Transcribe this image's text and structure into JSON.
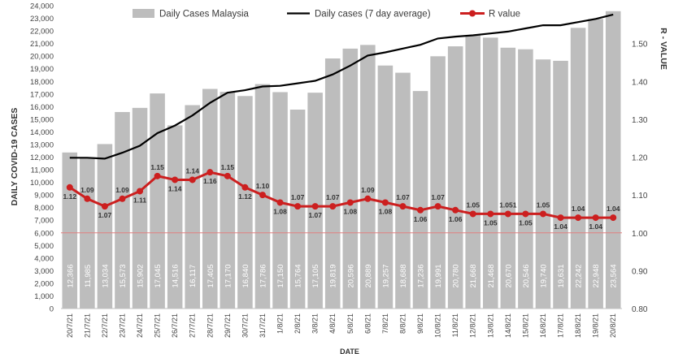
{
  "chart_data": {
    "type": "bar",
    "title": "",
    "xlabel": "DATE",
    "ylabel": "DAILY COVID-19 CASES",
    "y2label": "R - VALUE",
    "ylim": [
      0,
      24000
    ],
    "y2lim": [
      0.8,
      1.6
    ],
    "yticks": [
      "0",
      "1,000",
      "2,000",
      "3,000",
      "4,000",
      "5,000",
      "6,000",
      "7,000",
      "8,000",
      "9,000",
      "10,000",
      "11,000",
      "12,000",
      "13,000",
      "14,000",
      "15,000",
      "16,000",
      "17,000",
      "18,000",
      "19,000",
      "20,000",
      "21,000",
      "22,000",
      "23,000",
      "24,000"
    ],
    "y2ticks": [
      "0.80",
      "0.90",
      "1.00",
      "1.10",
      "1.20",
      "1.30",
      "1.40",
      "1.50"
    ],
    "categories": [
      "20/7/21",
      "21/7/21",
      "22/7/21",
      "23/7/21",
      "24/7/21",
      "25/7/21",
      "26/7/21",
      "27/7/21",
      "28/7/21",
      "29/7/21",
      "30/7/21",
      "31/7/21",
      "1/8/21",
      "2/8/21",
      "3/8/21",
      "4/8/21",
      "5/8/21",
      "6/8/21",
      "7/8/21",
      "8/8/21",
      "9/8/21",
      "10/8/21",
      "11/8/21",
      "12/8/21",
      "13/8/21",
      "14/8/21",
      "15/8/21",
      "16/8/21",
      "17/8/21",
      "18/8/21",
      "19/8/21",
      "20/8/21"
    ],
    "grid": false,
    "legend_position": "top",
    "reference_line_r": 1.0,
    "series": [
      {
        "name": "Daily Cases Malaysia",
        "type": "bar",
        "color": "#bdbdbd",
        "values": [
          12366,
          11985,
          13034,
          15573,
          15902,
          17045,
          14516,
          16117,
          17405,
          17170,
          16840,
          17786,
          17150,
          15764,
          17105,
          19819,
          20596,
          20889,
          19257,
          18688,
          17236,
          19991,
          20780,
          21668,
          21468,
          20670,
          20546,
          19740,
          19631,
          22242,
          22948,
          23564
        ],
        "labels": [
          "12,366",
          "11,985",
          "13,034",
          "15,573",
          "15,902",
          "17,045",
          "14,516",
          "16,117",
          "17,405",
          "17,170",
          "16,840",
          "17,786",
          "17,150",
          "15,764",
          "17,105",
          "19,819",
          "20,596",
          "20,889",
          "19,257",
          "18,688",
          "17,236",
          "19,991",
          "20,780",
          "21,668",
          "21,468",
          "20,670",
          "20,546",
          "19,740",
          "19,631",
          "22,242",
          "22,948",
          "23,564"
        ]
      },
      {
        "name": "Daily cases (7 day average)",
        "type": "line",
        "color": "#000000",
        "values": [
          11950,
          11950,
          11880,
          12350,
          12900,
          13900,
          14500,
          15300,
          16300,
          17100,
          17300,
          17600,
          17650,
          17850,
          18050,
          18550,
          19250,
          20050,
          20300,
          20600,
          20900,
          21400,
          21550,
          21650,
          21800,
          21950,
          22200,
          22450,
          22450,
          22700,
          22950,
          23300
        ]
      },
      {
        "name": "R value",
        "type": "line",
        "axis": "right",
        "color": "#cc1f1f",
        "values": [
          1.12,
          1.09,
          1.07,
          1.09,
          1.11,
          1.15,
          1.14,
          1.14,
          1.16,
          1.15,
          1.12,
          1.1,
          1.08,
          1.07,
          1.07,
          1.07,
          1.08,
          1.09,
          1.08,
          1.07,
          1.06,
          1.07,
          1.06,
          1.05,
          1.05,
          1.05,
          1.05,
          1.05,
          1.04,
          1.04,
          1.04,
          1.04
        ],
        "labels": [
          "1.12",
          "1.09",
          "1.07",
          "1.09",
          "1.11",
          "1.15",
          "1.14",
          "1.14",
          "1.16",
          "1.15",
          "1.12",
          "1.10",
          "1.08",
          "1.07",
          "1.07",
          "1.07",
          "1.08",
          "1.09",
          "1.08",
          "1.07",
          "1.06",
          "1.07",
          "1.06",
          "1.05",
          "1.05",
          "1.051",
          "1.05",
          "1.05",
          "1.04",
          "1.04",
          "1.04",
          "1.04"
        ]
      }
    ]
  }
}
